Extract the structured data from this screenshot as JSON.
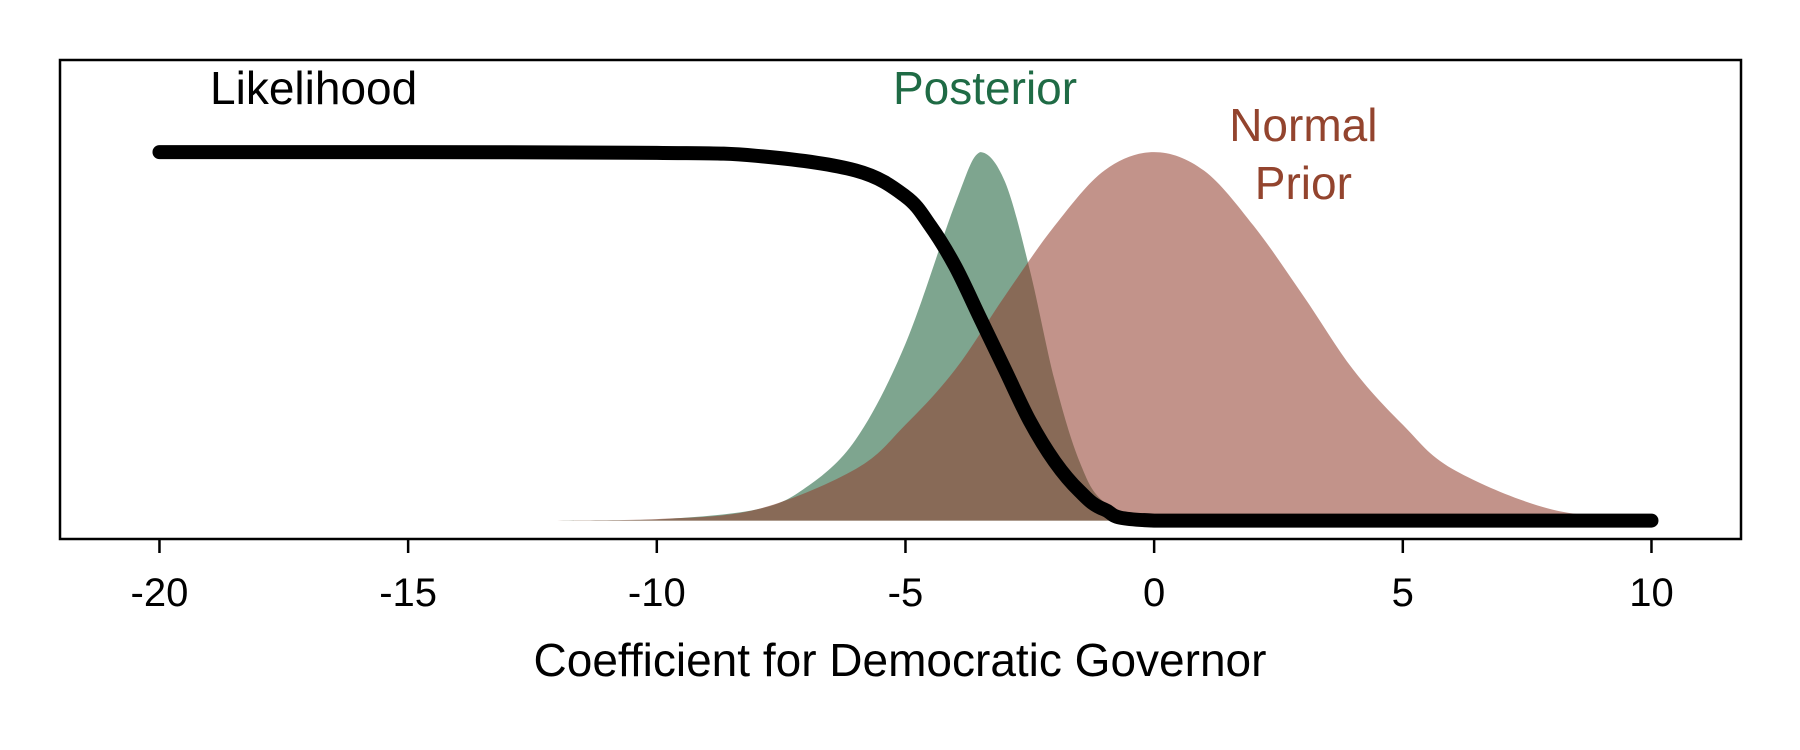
{
  "chart_data": {
    "type": "area",
    "title": "",
    "xlabel": "Coefficient for Democratic Governor",
    "ylabel": "",
    "xlim": [
      -22,
      11.8
    ],
    "ylim": [
      -0.05,
      1.25
    ],
    "xticks": [
      -20,
      -15,
      -10,
      -5,
      0,
      5,
      10
    ],
    "xtick_labels": [
      "-20",
      "-15",
      "-10",
      "-5",
      "0",
      "5",
      "10"
    ],
    "y_axis_ticks": "none",
    "grid": false,
    "legend": "none",
    "series": [
      {
        "name": "Likelihood",
        "kind": "line",
        "color": "#000000",
        "x": [
          -20,
          -15,
          -10,
          -8,
          -6,
          -5,
          -4.5,
          -4,
          -3.5,
          -3,
          -2.5,
          -2,
          -1.5,
          -1,
          0,
          5,
          10
        ],
        "values": [
          1.0,
          1.0,
          0.998,
          0.99,
          0.95,
          0.88,
          0.8,
          0.69,
          0.55,
          0.41,
          0.27,
          0.16,
          0.08,
          0.03,
          0.0,
          0.0,
          0.0
        ]
      },
      {
        "name": "Posterior",
        "kind": "area",
        "color": "#2E6E4A",
        "fill_opacity": 0.62,
        "x": [
          -12,
          -10,
          -8,
          -7,
          -6,
          -5,
          -4,
          -3.5,
          -3,
          -2.5,
          -2,
          -1.5,
          -1,
          0,
          2,
          5,
          10
        ],
        "values": [
          0.0,
          0.003,
          0.03,
          0.09,
          0.22,
          0.48,
          0.86,
          1.0,
          0.92,
          0.68,
          0.38,
          0.16,
          0.05,
          0.006,
          0.0,
          0.0,
          0.0
        ]
      },
      {
        "name": "Normal Prior",
        "kind": "area",
        "color": "#8F3A2A",
        "fill_opacity": 0.55,
        "x": [
          -12,
          -10,
          -8,
          -6,
          -5,
          -4,
          -3,
          -2,
          -1,
          0,
          1,
          2,
          3,
          4,
          5,
          6,
          8,
          10
        ],
        "values": [
          0.0,
          0.004,
          0.03,
          0.14,
          0.26,
          0.41,
          0.61,
          0.8,
          0.95,
          1.0,
          0.95,
          0.8,
          0.61,
          0.41,
          0.26,
          0.14,
          0.03,
          0.004
        ]
      }
    ],
    "annotations": [
      {
        "text": [
          "Likelihood"
        ],
        "color": "#000000",
        "x": -16.9,
        "y": 1.13
      },
      {
        "text": [
          "Posterior"
        ],
        "color": "#1F6B45",
        "x": -3.4,
        "y": 1.13
      },
      {
        "text": [
          "Normal",
          "Prior"
        ],
        "color": "#93442E",
        "x": 3.0,
        "y": 1.03
      }
    ]
  }
}
